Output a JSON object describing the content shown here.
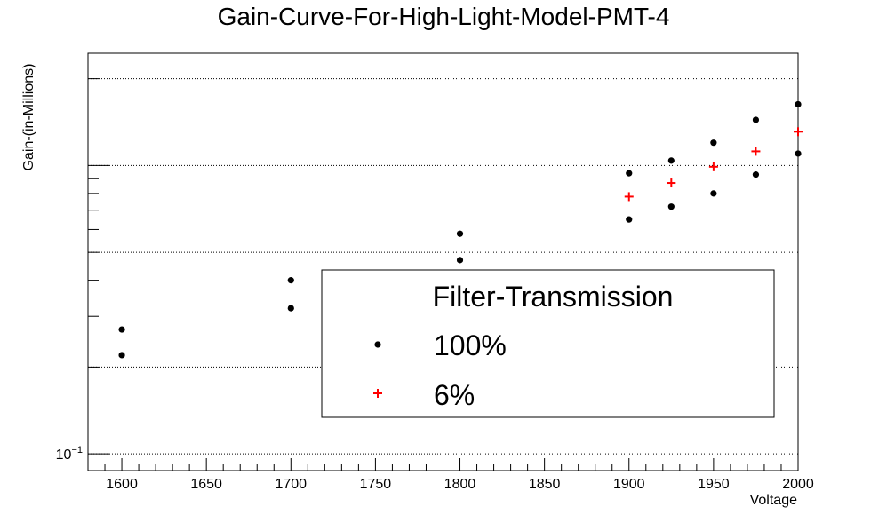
{
  "chart_data": {
    "type": "scatter",
    "title": "Gain-Curve-For-High-Light-Model-PMT-4",
    "xlabel": "Voltage",
    "ylabel": "Gain-(in-Millions)",
    "xlim": [
      1580,
      2000
    ],
    "x_ticks": [
      1600,
      1650,
      1700,
      1750,
      1800,
      1850,
      1900,
      1950,
      2000
    ],
    "y_scale": "log",
    "ylim": [
      0.0875,
      2.45
    ],
    "y_tick_labels": [
      {
        "value": 0.1,
        "base": "10",
        "exponent": "−1"
      }
    ],
    "grid": "horizontal-dotted",
    "legend": {
      "header": "Filter-Transmission",
      "placement": "bottom-right",
      "entries": [
        {
          "label": "100%",
          "marker": "circle",
          "color": "#000000"
        },
        {
          "label": "6%",
          "marker": "plus",
          "color": "#ff0000"
        }
      ]
    },
    "series": [
      {
        "name": "100%",
        "marker": "circle",
        "color": "#000000",
        "points": [
          {
            "x": 1600,
            "y": 0.27
          },
          {
            "x": 1600,
            "y": 0.22
          },
          {
            "x": 1700,
            "y": 0.4
          },
          {
            "x": 1700,
            "y": 0.32
          },
          {
            "x": 1800,
            "y": 0.58
          },
          {
            "x": 1800,
            "y": 0.47
          },
          {
            "x": 1900,
            "y": 0.94
          },
          {
            "x": 1900,
            "y": 0.65
          },
          {
            "x": 1925,
            "y": 1.04
          },
          {
            "x": 1925,
            "y": 0.72
          },
          {
            "x": 1950,
            "y": 1.2
          },
          {
            "x": 1950,
            "y": 0.8
          },
          {
            "x": 1975,
            "y": 1.44
          },
          {
            "x": 1975,
            "y": 0.93
          },
          {
            "x": 2000,
            "y": 1.63
          },
          {
            "x": 2000,
            "y": 1.1
          }
        ]
      },
      {
        "name": "6%",
        "marker": "plus",
        "color": "#ff0000",
        "points": [
          {
            "x": 1900,
            "y": 0.78
          },
          {
            "x": 1925,
            "y": 0.87
          },
          {
            "x": 1950,
            "y": 0.99
          },
          {
            "x": 1975,
            "y": 1.12
          },
          {
            "x": 2000,
            "y": 1.31
          }
        ]
      }
    ]
  }
}
